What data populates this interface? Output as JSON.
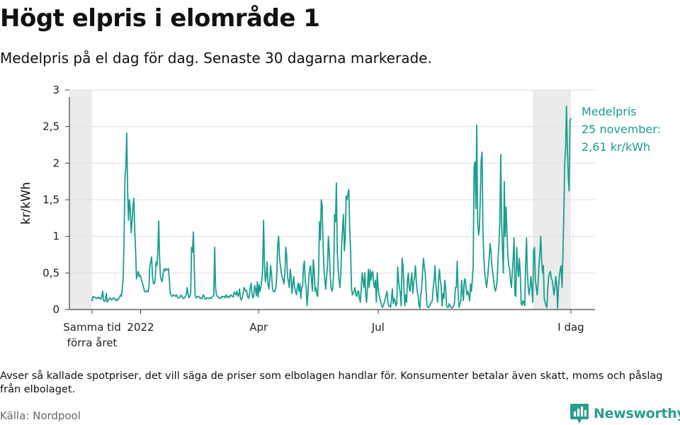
{
  "header": {
    "title": "Högt elpris i elområde 1",
    "subtitle": "Medelpris på el dag för dag.  Senaste 30 dagarna markerade."
  },
  "chart_data": {
    "type": "line",
    "series": [
      {
        "values": [
          0.12,
          0.18,
          0.17,
          0.17,
          0.16,
          0.15,
          0.16,
          0.17,
          0.15,
          0.16,
          0.14,
          0.18,
          0.25,
          0.12,
          0.11,
          0.13,
          0.22,
          0.1,
          0.12,
          0.14,
          0.16,
          0.15,
          0.13,
          0.14,
          0.16,
          0.15,
          0.14,
          0.12,
          0.14,
          0.13,
          0.15,
          0.17,
          0.2,
          0.18,
          0.29,
          0.43,
          0.95,
          1.8,
          1.95,
          2.41,
          1.62,
          1.22,
          1.5,
          1.38,
          1.05,
          1.2,
          1.4,
          1.52,
          1.1,
          0.8,
          0.42,
          0.48,
          0.52,
          0.45,
          0.47,
          0.44,
          0.38,
          0.35,
          0.3,
          0.25,
          0.24,
          0.25,
          0.26,
          0.24,
          0.3,
          0.6,
          0.65,
          0.72,
          0.45,
          0.36,
          0.35,
          0.4,
          0.65,
          0.6,
          0.8,
          1.21,
          0.7,
          0.45,
          0.4,
          0.38,
          0.5,
          0.55,
          0.53,
          0.56,
          0.54,
          0.55,
          0.56,
          0.4,
          0.22,
          0.2,
          0.18,
          0.19,
          0.2,
          0.19,
          0.18,
          0.2,
          0.17,
          0.16,
          0.16,
          0.17,
          0.2,
          0.18,
          0.15,
          0.15,
          0.16,
          0.18,
          0.2,
          0.3,
          0.22,
          0.16,
          0.18,
          0.22,
          0.85,
          0.78,
          1.06,
          0.6,
          0.2,
          0.16,
          0.17,
          0.18,
          0.18,
          0.16,
          0.15,
          0.16,
          0.15,
          0.2,
          0.19,
          0.15,
          0.14,
          0.16,
          0.16,
          0.15,
          0.15,
          0.16,
          0.15,
          0.17,
          0.18,
          0.19,
          0.85,
          0.3,
          0.2,
          0.18,
          0.17,
          0.16,
          0.15,
          0.16,
          0.18,
          0.17,
          0.18,
          0.18,
          0.16,
          0.2,
          0.18,
          0.16,
          0.18,
          0.17,
          0.2,
          0.19,
          0.18,
          0.17,
          0.24,
          0.22,
          0.2,
          0.25,
          0.18,
          0.2,
          0.28,
          0.15,
          0.13,
          0.16,
          0.22,
          0.3,
          0.28,
          0.25,
          0.26,
          0.18,
          0.15,
          0.2,
          0.3,
          0.36,
          0.22,
          0.16,
          0.18,
          0.33,
          0.28,
          0.19,
          0.38,
          0.17,
          0.34,
          0.25,
          0.3,
          0.4,
          0.55,
          1.22,
          0.65,
          0.38,
          0.45,
          0.65,
          0.35,
          0.28,
          0.4,
          0.6,
          0.48,
          0.3,
          0.25,
          0.24,
          0.26,
          0.3,
          0.5,
          0.9,
          1.0,
          0.7,
          0.6,
          0.5,
          0.45,
          0.4,
          0.35,
          0.5,
          0.85,
          0.75,
          0.45,
          0.38,
          0.3,
          0.55,
          0.45,
          0.22,
          0.35,
          0.45,
          0.3,
          0.25,
          0.2,
          0.3,
          0.36,
          0.25,
          0.35,
          0.15,
          0.3,
          0.32,
          0.6,
          0.66,
          0.38,
          0.3,
          0.05,
          0.22,
          0.45,
          0.55,
          0.6,
          0.4,
          0.25,
          0.68,
          0.55,
          0.25,
          0.3,
          0.2,
          0.18,
          0.5,
          1.2,
          0.95,
          1.5,
          1.42,
          0.9,
          0.55,
          0.4,
          0.28,
          0.45,
          0.6,
          1.0,
          0.8,
          0.5,
          0.3,
          0.25,
          0.3,
          0.52,
          1.3,
          1.2,
          1.73,
          0.8,
          0.55,
          0.4,
          0.3,
          0.5,
          0.9,
          1.1,
          1.3,
          0.8,
          0.98,
          1.55,
          1.5,
          1.58,
          1.64,
          1.1,
          0.8,
          0.3,
          0.2,
          0.22,
          0.25,
          0.3,
          0.2,
          0.18,
          0.25,
          0.25,
          0.15,
          0.1,
          0.3,
          0.5,
          0.4,
          0.3,
          0.5,
          0.2,
          0.1,
          0.3,
          0.55,
          0.3,
          0.54,
          0.4,
          0.5,
          0.52,
          0.35,
          0.3,
          0.4,
          0.1,
          0.5,
          0.3,
          0.2,
          0.15,
          0.1,
          0.05,
          0.03,
          0.06,
          0.1,
          0.15,
          0.2,
          0.25,
          0.1,
          0.05,
          0.05,
          0.03,
          0.15,
          0.28,
          0.08,
          0.15,
          0.12,
          0.05,
          0.08,
          0.58,
          0.4,
          0.3,
          0.22,
          0.05,
          0.7,
          0.6,
          0.3,
          0.05,
          0.2,
          0.1,
          0.4,
          0.5,
          0.3,
          0.25,
          0.4,
          0.5,
          0.22,
          0.35,
          0.45,
          0.6,
          0.38,
          0.25,
          0.2,
          0.05,
          0.02,
          0.2,
          0.3,
          0.5,
          0.7,
          0.58,
          0.5,
          0.25,
          0.05,
          0.03,
          0.03,
          0.05,
          0.08,
          0.1,
          0.12,
          0.3,
          0.4,
          0.6,
          0.35,
          0.2,
          0.1,
          0.4,
          0.55,
          0.4,
          0.3,
          0.05,
          0.22,
          0.15,
          0.4,
          0.3,
          0.05,
          0.03,
          0.03,
          0.08,
          0.05,
          0.03,
          0.02,
          0.03,
          0.05,
          0.1,
          0.3,
          0.3,
          0.66,
          0.25,
          0.03,
          0.08,
          0.1,
          0.4,
          0.25,
          0.12,
          0.4,
          0.42,
          0.3,
          0.2,
          0.25,
          0.2,
          0.12,
          0.35,
          0.25,
          0.4,
          0.6,
          1.95,
          2.02,
          1.38,
          2.52,
          1.2,
          1.02,
          1.1,
          1.52,
          2.05,
          2.15,
          1.05,
          0.7,
          0.5,
          0.4,
          0.3,
          0.4,
          0.55,
          0.7,
          0.9,
          0.8,
          0.6,
          0.5,
          0.4,
          0.3,
          0.25,
          0.3,
          0.4,
          0.7,
          0.9,
          1.2,
          2.12,
          1.2,
          0.8,
          0.5,
          1.75,
          1.0,
          1.4,
          1.05,
          0.75,
          0.6,
          0.55,
          0.4,
          0.3,
          0.5,
          0.7,
          0.98,
          0.2,
          0.18,
          0.85,
          0.6,
          0.45,
          0.7,
          0.5,
          0.08,
          0.06,
          0.12,
          0.1,
          0.05,
          0.6,
          0.98,
          0.5,
          0.3,
          0.2,
          0.3,
          0.45,
          0.3,
          0.1,
          0.8,
          0.85,
          0.4,
          0.3,
          0.2,
          0.35,
          0.6,
          0.75,
          1.0,
          0.7,
          0.5,
          0.6,
          0.15,
          0.1,
          0.05,
          0.03,
          0.3,
          0.45,
          0.5,
          0.52,
          0.42,
          0.4,
          0.3,
          0.2,
          0.3,
          0.45,
          0.35,
          0.02,
          0.3,
          0.45,
          0.55,
          0.6,
          0.3,
          0.75,
          1.3,
          2.0,
          2.2,
          2.78,
          2.2,
          1.8,
          1.62,
          2.58,
          2.61
        ]
      }
    ],
    "xlim": [
      "2021-11-25",
      "2022-11-25"
    ],
    "ylim": [
      0,
      3
    ],
    "y_ticks": [
      0,
      0.5,
      1,
      1.5,
      2,
      2.5,
      3
    ],
    "y_tick_labels": [
      "0",
      "0,5",
      "1",
      "1,5",
      "2",
      "2,5",
      "3"
    ],
    "x_ticks": [
      {
        "at": "2021-11-25",
        "label": [
          "Samma tid",
          "förra året"
        ]
      },
      {
        "at": "2022-01-01",
        "label": [
          "2022"
        ]
      },
      {
        "at": "2022-04-01",
        "label": [
          "Apr"
        ]
      },
      {
        "at": "2022-07-01",
        "label": [
          "Jul"
        ]
      },
      {
        "at": "2022-11-25",
        "label": [
          "I dag"
        ]
      }
    ],
    "highlight_ranges": [
      [
        "2021-10-27",
        "2021-11-25"
      ],
      [
        "2022-10-27",
        "2022-11-25"
      ]
    ],
    "ylabel": "kr/kWh",
    "annotation": [
      "Medelpris",
      "25 november:",
      "2,61 kr/kWh"
    ],
    "grid": "horizontal",
    "colors": {
      "line": "#1a9e8f",
      "highlight": "#ebebeb",
      "grid": "#dedede",
      "axis": "#444444"
    }
  },
  "footer": {
    "note": "Avser så kallade spotpriser, det vill säga de priser som elbolagen handlar för. Konsumenter betalar även skatt, moms och påslag från elbolaget.",
    "source": "Källa: Nordpool",
    "brand": "Newsworthy",
    "brand_icon": "newsworthy-logo-icon"
  }
}
